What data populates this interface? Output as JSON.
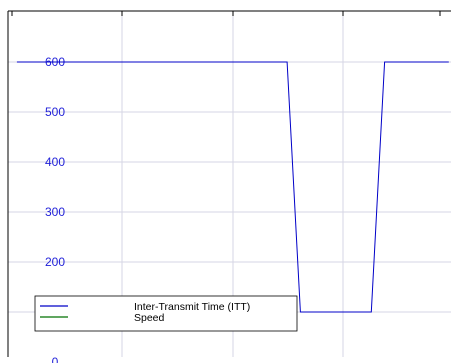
{
  "chart_data": {
    "type": "line",
    "title": "",
    "xlabel": "",
    "ylabel": "",
    "ylim": [
      0,
      660
    ],
    "xlim": [
      0,
      100
    ],
    "y_ticks": [
      0,
      100,
      200,
      300,
      400,
      500,
      600
    ],
    "y_tick_labels": [
      "0",
      "100",
      "200",
      "300",
      "400",
      "500",
      "600"
    ],
    "x_ticks": [
      0,
      25,
      50,
      75,
      100
    ],
    "grid": true,
    "legend_placement": "bottom-left",
    "series": [
      {
        "name": "Inter-Transmit Time (ITT)",
        "color": "#0000c8",
        "x": [
          2,
          63,
          66,
          82,
          85,
          99.5
        ],
        "y": [
          600,
          600,
          100,
          100,
          600,
          600
        ]
      },
      {
        "name": "Speed",
        "color": "#007000",
        "x": [],
        "y": []
      }
    ]
  }
}
